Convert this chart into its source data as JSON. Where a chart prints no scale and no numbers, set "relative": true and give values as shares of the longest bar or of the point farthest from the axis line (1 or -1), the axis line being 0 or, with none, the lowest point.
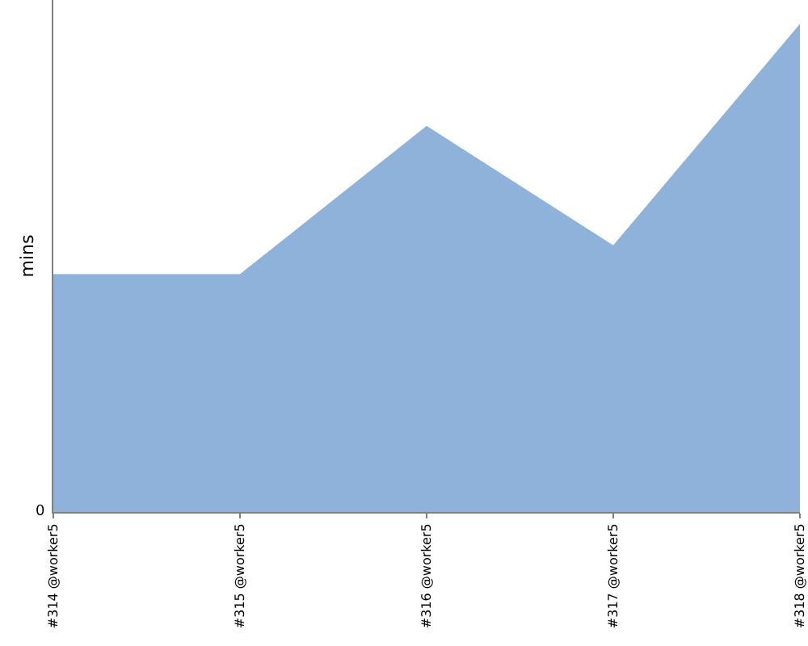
{
  "chart_data": {
    "type": "area",
    "ylabel": "mins",
    "relative": true,
    "legend": false,
    "categories": [
      "#314 @worker5",
      "#315 @worker5",
      "#316 @worker5",
      "#317 @worker5",
      "#318 @worker5"
    ],
    "series": [
      {
        "color": "#8fb2da",
        "values": [
          0.487,
          0.487,
          0.791,
          0.546,
          1
        ]
      }
    ],
    "annotations": [
      "0"
    ]
  }
}
